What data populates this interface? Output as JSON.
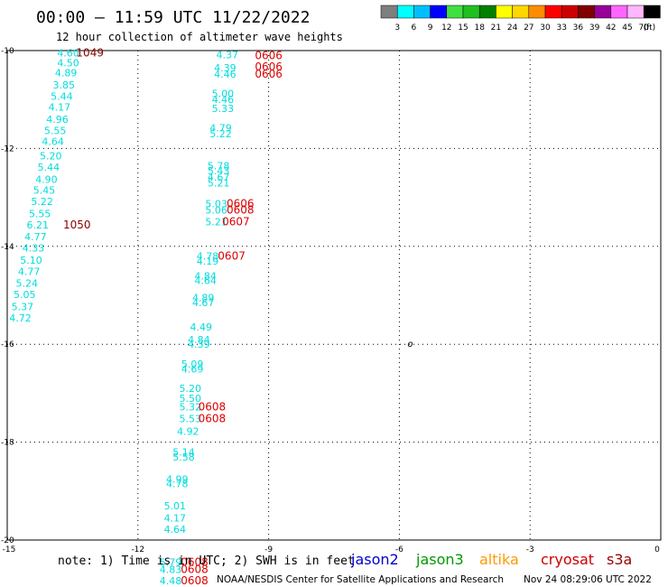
{
  "header": {
    "title": "00:00 — 11:59 UTC 11/22/2022",
    "subtitle": "12 hour collection of altimeter wave heights"
  },
  "colorbar": {
    "colors": [
      "#7f7f7f",
      "#00ffff",
      "#00bfff",
      "#0000ff",
      "#40e040",
      "#20c020",
      "#008000",
      "#ffff00",
      "#ffd700",
      "#ff8c00",
      "#ff0000",
      "#cc0000",
      "#800000",
      "#990099",
      "#ff66ff",
      "#ffb6ff",
      "#000000"
    ],
    "labels": [
      "3",
      "6",
      "9",
      "12",
      "15",
      "18",
      "21",
      "24",
      "27",
      "30",
      "33",
      "36",
      "39",
      "42",
      "45",
      "70",
      "(ft)"
    ]
  },
  "note": "note: 1) Time is in UTC; 2) SWH is in feet",
  "satellites": [
    {
      "name": "jason2",
      "color": "#0000cc"
    },
    {
      "name": "jason3",
      "color": "#009900"
    },
    {
      "name": "altika",
      "color": "#ff9900"
    },
    {
      "name": "cryosat",
      "color": "#cc0000"
    },
    {
      "name": "s3a",
      "color": "#990000"
    }
  ],
  "footer_left": "NOAA/NESDIS Center for Satellite Applications and Research",
  "footer_right": "Nov 24 08:29:06 UTC 2022",
  "chart_data": {
    "type": "scatter",
    "xlim": [
      -15,
      0
    ],
    "ylim": [
      -20,
      -10
    ],
    "x_ticks": [
      {
        "v": -15,
        "label": "-15"
      },
      {
        "v": -12,
        "label": "-12"
      },
      {
        "v": -9,
        "label": "-9"
      },
      {
        "v": -6,
        "label": "-6"
      },
      {
        "v": -3,
        "label": "-3"
      },
      {
        "v": 0,
        "label": "0"
      }
    ],
    "y_ticks": [
      {
        "v": -10,
        "label": "-10"
      },
      {
        "v": -12,
        "label": "-12"
      },
      {
        "v": -14,
        "label": "-14"
      },
      {
        "v": -16,
        "label": "-16"
      },
      {
        "v": -18,
        "label": "-18"
      },
      {
        "v": -20,
        "label": "-20"
      }
    ],
    "grid": true,
    "wave_color": "#00dddd",
    "time_color": "#dd0000",
    "time_color_dark": "#880000",
    "wave_heights": [
      {
        "x": -13.6,
        "y": -10.05,
        "v": "4.60"
      },
      {
        "x": -13.6,
        "y": -10.25,
        "v": "4.50"
      },
      {
        "x": -13.65,
        "y": -10.45,
        "v": "4.89"
      },
      {
        "x": -13.7,
        "y": -10.7,
        "v": "3.85"
      },
      {
        "x": -13.75,
        "y": -10.93,
        "v": "5.44"
      },
      {
        "x": -13.8,
        "y": -11.15,
        "v": "4.17"
      },
      {
        "x": -13.85,
        "y": -11.4,
        "v": "4.96"
      },
      {
        "x": -13.9,
        "y": -11.63,
        "v": "5.55"
      },
      {
        "x": -13.95,
        "y": -11.85,
        "v": "4.64"
      },
      {
        "x": -14.0,
        "y": -12.15,
        "v": "5.20"
      },
      {
        "x": -14.05,
        "y": -12.38,
        "v": "5.44"
      },
      {
        "x": -14.1,
        "y": -12.63,
        "v": "4.90"
      },
      {
        "x": -14.15,
        "y": -12.85,
        "v": "5.45"
      },
      {
        "x": -14.2,
        "y": -13.08,
        "v": "5.22"
      },
      {
        "x": -14.25,
        "y": -13.33,
        "v": "5.55"
      },
      {
        "x": -14.3,
        "y": -13.56,
        "v": "6.21"
      },
      {
        "x": -14.35,
        "y": -13.8,
        "v": "4.77"
      },
      {
        "x": -14.4,
        "y": -14.03,
        "v": "4.33"
      },
      {
        "x": -14.45,
        "y": -14.28,
        "v": "5.10"
      },
      {
        "x": -14.5,
        "y": -14.51,
        "v": "4.77"
      },
      {
        "x": -14.55,
        "y": -14.75,
        "v": "5.24"
      },
      {
        "x": -14.6,
        "y": -14.98,
        "v": "5.05"
      },
      {
        "x": -14.65,
        "y": -15.23,
        "v": "5.37"
      },
      {
        "x": -14.7,
        "y": -15.46,
        "v": "4.72"
      },
      {
        "x": -9.95,
        "y": -10.08,
        "v": "4.37"
      },
      {
        "x": -10.0,
        "y": -10.35,
        "v": "4.39"
      },
      {
        "x": -10.0,
        "y": -10.48,
        "v": "4.46"
      },
      {
        "x": -10.05,
        "y": -10.88,
        "v": "5.00"
      },
      {
        "x": -10.05,
        "y": -11.0,
        "v": "4.46"
      },
      {
        "x": -10.05,
        "y": -11.18,
        "v": "5.33"
      },
      {
        "x": -10.1,
        "y": -11.58,
        "v": "4.79"
      },
      {
        "x": -10.1,
        "y": -11.7,
        "v": "5.22"
      },
      {
        "x": -10.15,
        "y": -12.35,
        "v": "5.78"
      },
      {
        "x": -10.15,
        "y": -12.45,
        "v": "5.43"
      },
      {
        "x": -10.15,
        "y": -12.58,
        "v": "4.67"
      },
      {
        "x": -10.15,
        "y": -12.7,
        "v": "5.21"
      },
      {
        "x": -10.2,
        "y": -13.13,
        "v": "5.03"
      },
      {
        "x": -10.2,
        "y": -13.26,
        "v": "5.06"
      },
      {
        "x": -10.2,
        "y": -13.5,
        "v": "5.21"
      },
      {
        "x": -10.4,
        "y": -14.2,
        "v": "4.78"
      },
      {
        "x": -10.4,
        "y": -14.3,
        "v": "4.19"
      },
      {
        "x": -10.45,
        "y": -14.6,
        "v": "4.84"
      },
      {
        "x": -10.45,
        "y": -14.7,
        "v": "4.64"
      },
      {
        "x": -10.5,
        "y": -15.05,
        "v": "4.89"
      },
      {
        "x": -10.5,
        "y": -15.15,
        "v": "4.67"
      },
      {
        "x": -10.55,
        "y": -15.65,
        "v": "4.49"
      },
      {
        "x": -10.6,
        "y": -15.9,
        "v": "4.84"
      },
      {
        "x": -10.6,
        "y": -16.0,
        "v": "4.39"
      },
      {
        "x": -10.75,
        "y": -16.4,
        "v": "5.09"
      },
      {
        "x": -10.75,
        "y": -16.5,
        "v": "4.69"
      },
      {
        "x": -10.8,
        "y": -16.9,
        "v": "5.20"
      },
      {
        "x": -10.8,
        "y": -17.1,
        "v": "5.50"
      },
      {
        "x": -10.8,
        "y": -17.28,
        "v": "5.32"
      },
      {
        "x": -10.8,
        "y": -17.52,
        "v": "5.53"
      },
      {
        "x": -10.85,
        "y": -17.78,
        "v": "4.92"
      },
      {
        "x": -10.95,
        "y": -18.2,
        "v": "5.14"
      },
      {
        "x": -10.95,
        "y": -18.3,
        "v": "5.58"
      },
      {
        "x": -11.1,
        "y": -18.75,
        "v": "4.99"
      },
      {
        "x": -11.1,
        "y": -18.85,
        "v": "4.78"
      },
      {
        "x": -11.15,
        "y": -19.3,
        "v": "5.01"
      },
      {
        "x": -11.15,
        "y": -19.55,
        "v": "4.17"
      },
      {
        "x": -11.15,
        "y": -19.78,
        "v": "4.64"
      },
      {
        "x": -11.25,
        "y": -20.45,
        "v": "5.79"
      },
      {
        "x": -11.25,
        "y": -20.6,
        "v": "4.83"
      },
      {
        "x": -11.25,
        "y": -20.83,
        "v": "4.48"
      }
    ],
    "time_labels": [
      {
        "x": -13.1,
        "y": -10.05,
        "v": "1049",
        "dark": true
      },
      {
        "x": -13.4,
        "y": -13.56,
        "v": "1050",
        "dark": true
      },
      {
        "x": -9.0,
        "y": -10.1,
        "v": "0606",
        "dark": false
      },
      {
        "x": -9.0,
        "y": -10.33,
        "v": "0606",
        "dark": false
      },
      {
        "x": -9.0,
        "y": -10.48,
        "v": "0606",
        "dark": false
      },
      {
        "x": -9.65,
        "y": -13.13,
        "v": "0606",
        "dark": false
      },
      {
        "x": -9.65,
        "y": -13.26,
        "v": "0608",
        "dark": false
      },
      {
        "x": -9.75,
        "y": -13.5,
        "v": "0607",
        "dark": false
      },
      {
        "x": -9.85,
        "y": -14.2,
        "v": "0607",
        "dark": false
      },
      {
        "x": -10.3,
        "y": -17.28,
        "v": "0608",
        "dark": false
      },
      {
        "x": -10.3,
        "y": -17.52,
        "v": "0608",
        "dark": false
      },
      {
        "x": -10.7,
        "y": -20.45,
        "v": "0608",
        "dark": false
      },
      {
        "x": -10.7,
        "y": -20.6,
        "v": "0608",
        "dark": false
      },
      {
        "x": -10.7,
        "y": -20.83,
        "v": "0608",
        "dark": false
      }
    ],
    "markers": [
      {
        "x": -5.75,
        "y": -16.0,
        "v": "o"
      }
    ]
  }
}
